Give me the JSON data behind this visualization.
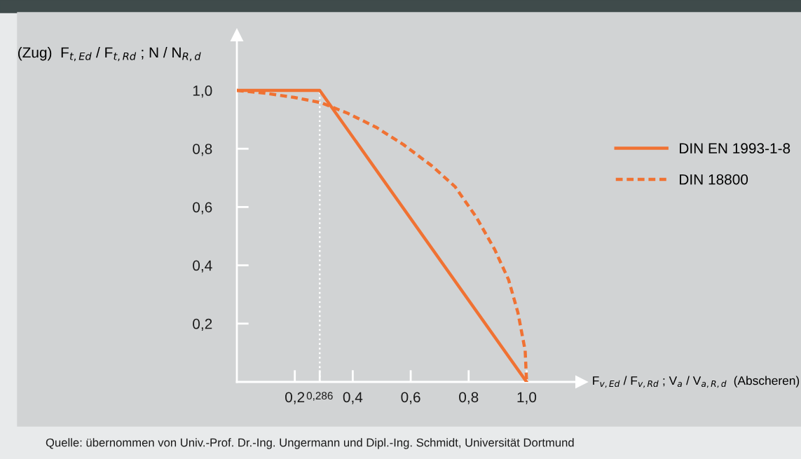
{
  "chart_data": {
    "type": "line",
    "xlabel": "F$_{v,Ed}$ / F$_{v,Rd}$ ; V$_{a}$ / V$_{a,R,d}$  (Abscheren)",
    "ylabel": "(Zug)  F$_{t,Ed}$ / F$_{t,Rd}$ ; N / N$_{R,d}$",
    "series": [
      {
        "name": "DIN EN 1993-1-8",
        "color": "#f07233",
        "line_style": "solid",
        "x": [
          0,
          0.286,
          1.0
        ],
        "values": [
          1.0,
          1.0,
          0.0
        ]
      },
      {
        "name": "DIN 18800",
        "color": "#f07233",
        "line_style": "dashed",
        "x": [
          0,
          0.1,
          0.198,
          0.29,
          0.382,
          0.48,
          0.575,
          0.672,
          0.753,
          0.826,
          0.89,
          0.938,
          0.97,
          0.995,
          1.0
        ],
        "values": [
          1.0,
          0.99,
          0.976,
          0.958,
          0.922,
          0.874,
          0.814,
          0.742,
          0.67,
          0.566,
          0.454,
          0.35,
          0.238,
          0.108,
          0.0
        ]
      }
    ],
    "xlim": [
      0,
      1.19
    ],
    "ylim": [
      0,
      1.19
    ],
    "xticks": [
      {
        "value": 0.2,
        "label": "0,2"
      },
      {
        "value": 0.286,
        "label": "0,286"
      },
      {
        "value": 0.4,
        "label": "0,4"
      },
      {
        "value": 0.6,
        "label": "0,6"
      },
      {
        "value": 0.8,
        "label": "0,8"
      },
      {
        "value": 1.0,
        "label": "1,0"
      }
    ],
    "yticks": [
      {
        "value": 0.2,
        "label": "0,2"
      },
      {
        "value": 0.4,
        "label": "0,4"
      },
      {
        "value": 0.6,
        "label": "0,6"
      },
      {
        "value": 0.8,
        "label": "0,8"
      },
      {
        "value": 1.0,
        "label": "1,0"
      }
    ],
    "ref_lines": [
      {
        "axis": "x",
        "value": 0.286,
        "color": "#ffffff",
        "line_style": "dotted"
      }
    ],
    "grid": false,
    "legend": "right",
    "annotations": [
      "Quelle: übernommen von Univ.-Prof. Dr.-Ing. Ungermann und Dipl.-Ing. Schmidt, Universität Dortmund"
    ]
  }
}
